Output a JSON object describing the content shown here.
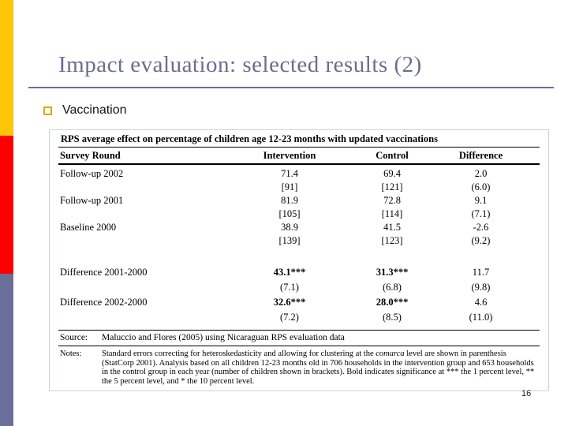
{
  "slide": {
    "title": "Impact evaluation: selected results (2)",
    "bullet": "Vaccination",
    "page_number": "16"
  },
  "colors": {
    "bar_yellow": "#FFC506",
    "bar_red": "#FF0000",
    "bar_slate": "#6A6E9B",
    "title": "#6A6D8E",
    "rule": "#6A6E96",
    "bullet_outline": "#D4AA01"
  },
  "table": {
    "title": "RPS average effect on percentage of children age 12-23 months with updated vaccinations",
    "columns": [
      "Survey Round",
      "Intervention",
      "Control",
      "Difference"
    ],
    "rows": [
      {
        "label": "Follow-up 2002",
        "values": [
          "71.4",
          "69.4",
          "2.0"
        ],
        "sub": [
          "[91]",
          "[121]",
          "(6.0)"
        ]
      },
      {
        "label": "Follow-up 2001",
        "values": [
          "81.9",
          "72.8",
          "9.1"
        ],
        "sub": [
          "[105]",
          "[114]",
          "(7.1)"
        ]
      },
      {
        "label": "Baseline 2000",
        "values": [
          "38.9",
          "41.5",
          "-2.6"
        ],
        "sub": [
          "[139]",
          "[123]",
          "(9.2)"
        ]
      }
    ],
    "diff_rows": [
      {
        "label": "Difference 2001-2000",
        "values": [
          "43.1***",
          "31.3***",
          "11.7"
        ],
        "sub": [
          "(7.1)",
          "(6.8)",
          "(9.8)"
        ]
      },
      {
        "label": "Difference 2002-2000",
        "values": [
          "32.6***",
          "28.0***",
          "4.6"
        ],
        "sub": [
          "(7.2)",
          "(8.5)",
          "(11.0)"
        ]
      }
    ],
    "source_label": "Source:",
    "source_text": "Maluccio and Flores (2005) using Nicaraguan RPS evaluation data",
    "notes_label": "Notes:",
    "notes": {
      "part1": "Standard errors correcting for heteroskedasticity and allowing for clustering at the ",
      "italic": "comarca",
      "part2": " level are shown in parenthesis (StatCorp 2001). Analysis based on all children 12-23 months old in 706 households in the intervention group and 653 households in the control group in each year (number of children shown in brackets). Bold indicates significance at *** the 1 percent level, ** the 5 percent level, and * the 10 percent level."
    }
  }
}
